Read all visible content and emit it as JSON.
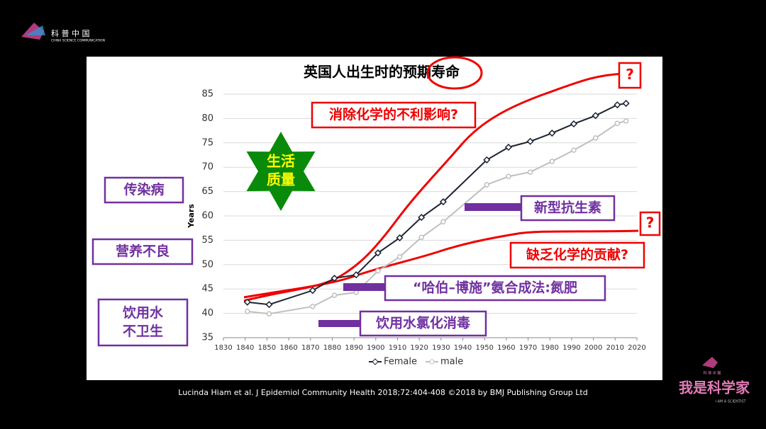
{
  "logo": {
    "name": "科 普 中 国",
    "subtitle": "CHINA SCIENCE COMMUNICATION"
  },
  "brand": {
    "name": "我是科学家",
    "subtitle": "I AM A SCIENTIST",
    "tag": "科 普 中 国"
  },
  "citation": "Lucinda Hiam et al. J Epidemiol Community Health 2018;72:404-408 ©2018 by BMJ Publishing Group Ltd",
  "chart_data": {
    "type": "line",
    "title": "英国人出生时的预期寿命",
    "y_label": "Years",
    "x": [
      1841,
      1851,
      1871,
      1881,
      1891,
      1901,
      1911,
      1921,
      1931,
      1951,
      1961,
      1971,
      1981,
      1991,
      2001,
      2011,
      2015
    ],
    "series": [
      {
        "name": "Female",
        "color": "#1c2333",
        "values": [
          42.3,
          41.8,
          44.7,
          47.2,
          47.9,
          52.4,
          55.5,
          59.7,
          62.9,
          71.5,
          74.1,
          75.3,
          77.0,
          78.9,
          80.6,
          82.8,
          83.1
        ]
      },
      {
        "name": "male",
        "color": "#bfbfbf",
        "values": [
          40.4,
          39.9,
          41.4,
          43.7,
          44.3,
          48.7,
          51.6,
          55.6,
          58.8,
          66.4,
          68.1,
          69.0,
          71.2,
          73.5,
          76.0,
          79.0,
          79.5
        ]
      }
    ],
    "xlim": [
      1830,
      2020
    ],
    "xticks": [
      1830,
      1840,
      1850,
      1860,
      1870,
      1880,
      1890,
      1900,
      1910,
      1920,
      1930,
      1940,
      1950,
      1960,
      1970,
      1980,
      1990,
      2000,
      2010,
      2020
    ],
    "ylim": [
      35,
      85
    ],
    "yticks": [
      35,
      40,
      45,
      50,
      55,
      60,
      65,
      70,
      75,
      80,
      85
    ],
    "grid": true,
    "legend": "bottom",
    "annotations": [
      {
        "lines": [
          "生活",
          "质量"
        ]
      },
      {
        "lines": [
          "传染病"
        ]
      },
      {
        "lines": [
          "营养不良"
        ]
      },
      {
        "lines": [
          "饮用水",
          "不卫生"
        ]
      },
      {
        "lines": [
          "消除化学的不利影响?"
        ]
      },
      {
        "lines": [
          "新型抗生素"
        ]
      },
      {
        "lines": [
          "缺乏化学的贡献?"
        ]
      },
      {
        "lines": [
          "“哈伯–博施”氨合成法:氮肥"
        ]
      },
      {
        "lines": [
          "饮用水氯化消毒"
        ]
      },
      {
        "lines": [
          "?"
        ]
      },
      {
        "lines": [
          "?"
        ]
      }
    ]
  }
}
